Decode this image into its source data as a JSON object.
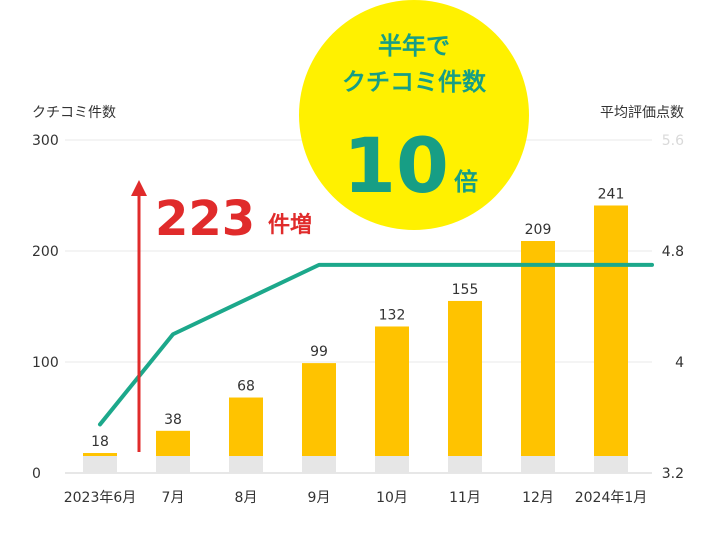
{
  "chart_data": {
    "type": "bar",
    "categories": [
      "2023年6月",
      "7月",
      "8月",
      "9月",
      "10月",
      "11月",
      "12月",
      "2024年1月"
    ],
    "series": [
      {
        "values": [
          18,
          38,
          68,
          99,
          132,
          155,
          209,
          241
        ],
        "axis": "left",
        "color": "#ffc300",
        "base_color": "#e6e6e6"
      },
      {
        "type": "line",
        "values": [
          3.55,
          4.2,
          4.45,
          4.7,
          4.7,
          4.7,
          4.7,
          4.7
        ],
        "axis": "right",
        "color": "#1ca88b"
      }
    ],
    "ylabel": "クチコミ件数",
    "ylim": [
      0,
      300
    ],
    "yticks": [
      "0",
      "100",
      "200",
      "300"
    ],
    "y2label": "平均評価点数",
    "y2lim": [
      3.2,
      5.6
    ],
    "y2ticks": [
      "3.2",
      "4",
      "4.8",
      "5.6"
    ],
    "grid": true,
    "annotations": {
      "increase": {
        "value": "223",
        "unit": "件増",
        "color": "#e02b2b"
      },
      "badge": {
        "line1": "半年で",
        "line2": "クチコミ件数",
        "number": "10",
        "unit": "倍",
        "circle_color": "#fff100",
        "text_color": "#179e85"
      }
    }
  }
}
